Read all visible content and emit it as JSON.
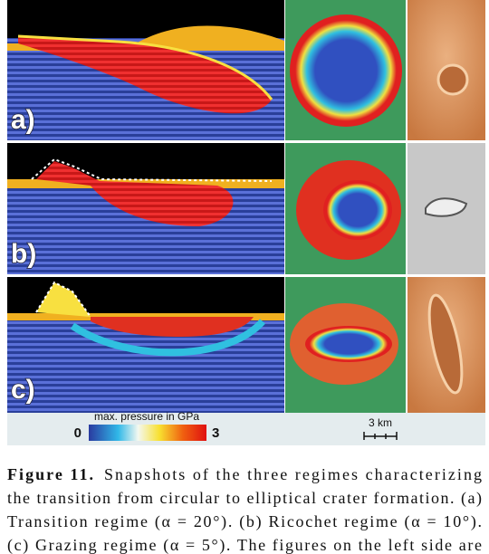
{
  "figure": {
    "panels": [
      "a)",
      "b)",
      "c)"
    ],
    "colorbar": {
      "title": "max. pressure in GPa",
      "ticks": [
        0,
        3
      ]
    },
    "scale_bar": "3 km"
  },
  "caption": {
    "label": "Figure 11.",
    "lines": [
      "Snapshots of the three regimes characterizing",
      "the transition from circular to elliptical crater formation. (a)",
      "Transition regime (α = 20°). (b) Ricochet regime (α = 10°).",
      "(c) Grazing regime (α = 5°). The figures on the left side are"
    ]
  }
}
